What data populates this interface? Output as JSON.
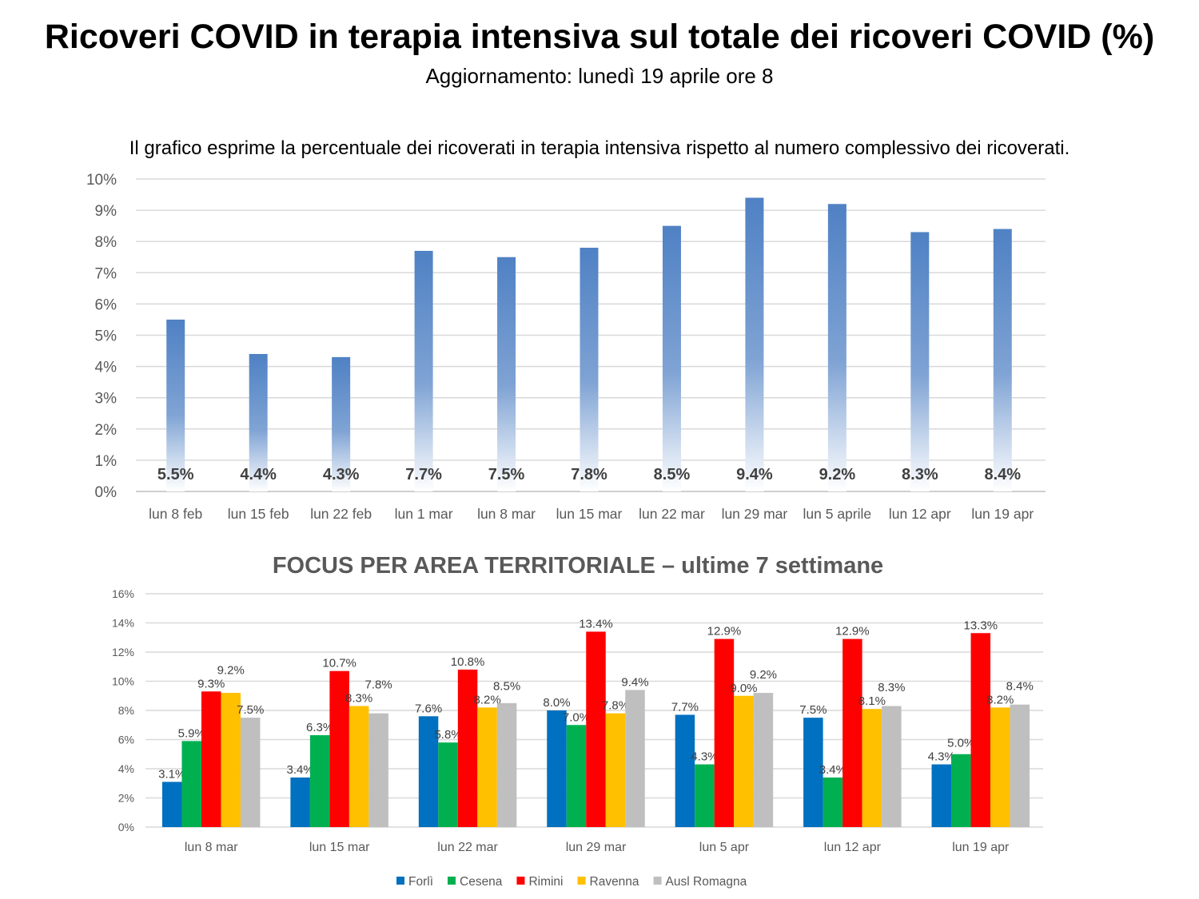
{
  "header": {
    "title": "Ricoveri COVID in terapia intensiva sul totale dei ricoveri COVID (%)",
    "subtitle": "Aggiornamento: lunedì 19 aprile ore 8",
    "description": "Il grafico esprime la percentuale dei ricoverati in terapia intensiva rispetto al numero complessivo dei ricoverati."
  },
  "chart_data": [
    {
      "type": "bar",
      "title": "",
      "xlabel": "",
      "ylabel": "",
      "ylim": [
        0,
        10
      ],
      "yticks": [
        "0%",
        "1%",
        "2%",
        "3%",
        "4%",
        "5%",
        "6%",
        "7%",
        "8%",
        "9%",
        "10%"
      ],
      "grid": true,
      "categories": [
        "lun 8 feb",
        "lun 15 feb",
        "lun 22 feb",
        "lun 1 mar",
        "lun 8 mar",
        "lun 15 mar",
        "lun 22 mar",
        "lun 29 mar",
        "lun 5 aprile",
        "lun 12 apr",
        "lun 19 apr"
      ],
      "values": [
        5.5,
        4.4,
        4.3,
        7.7,
        7.5,
        7.8,
        8.5,
        9.4,
        9.2,
        8.3,
        8.4
      ],
      "labels": [
        "5.5%",
        "4.4%",
        "4.3%",
        "7.7%",
        "7.5%",
        "7.8%",
        "8.5%",
        "9.4%",
        "9.2%",
        "8.3%",
        "8.4%"
      ],
      "color": "#4F81C4"
    },
    {
      "type": "bar",
      "title": "FOCUS PER AREA TERRITORIALE – ultime 7 settimane",
      "xlabel": "",
      "ylabel": "",
      "ylim": [
        0,
        16
      ],
      "yticks": [
        "0%",
        "2%",
        "4%",
        "6%",
        "8%",
        "10%",
        "12%",
        "14%",
        "16%"
      ],
      "grid": true,
      "legend_position": "bottom",
      "categories": [
        "lun 8 mar",
        "lun 15 mar",
        "lun 22 mar",
        "lun 29 mar",
        "lun 5 apr",
        "lun 12 apr",
        "lun 19 apr"
      ],
      "series": [
        {
          "name": "Forlì",
          "color": "#0070C0",
          "values": [
            3.1,
            3.4,
            7.6,
            8.0,
            7.7,
            7.5,
            4.3
          ]
        },
        {
          "name": "Cesena",
          "color": "#00B050",
          "values": [
            5.9,
            6.3,
            5.8,
            7.0,
            4.3,
            3.4,
            5.0
          ]
        },
        {
          "name": "Rimini",
          "color": "#FF0000",
          "values": [
            9.3,
            10.7,
            10.8,
            13.4,
            12.9,
            12.9,
            13.3
          ]
        },
        {
          "name": "Ravenna",
          "color": "#FFC000",
          "values": [
            9.2,
            8.3,
            8.2,
            7.8,
            9.0,
            8.1,
            8.2
          ]
        },
        {
          "name": "Ausl Romagna",
          "color": "#BFBFBF",
          "values": [
            7.5,
            7.8,
            8.5,
            9.4,
            9.2,
            8.3,
            8.4
          ]
        }
      ]
    }
  ]
}
